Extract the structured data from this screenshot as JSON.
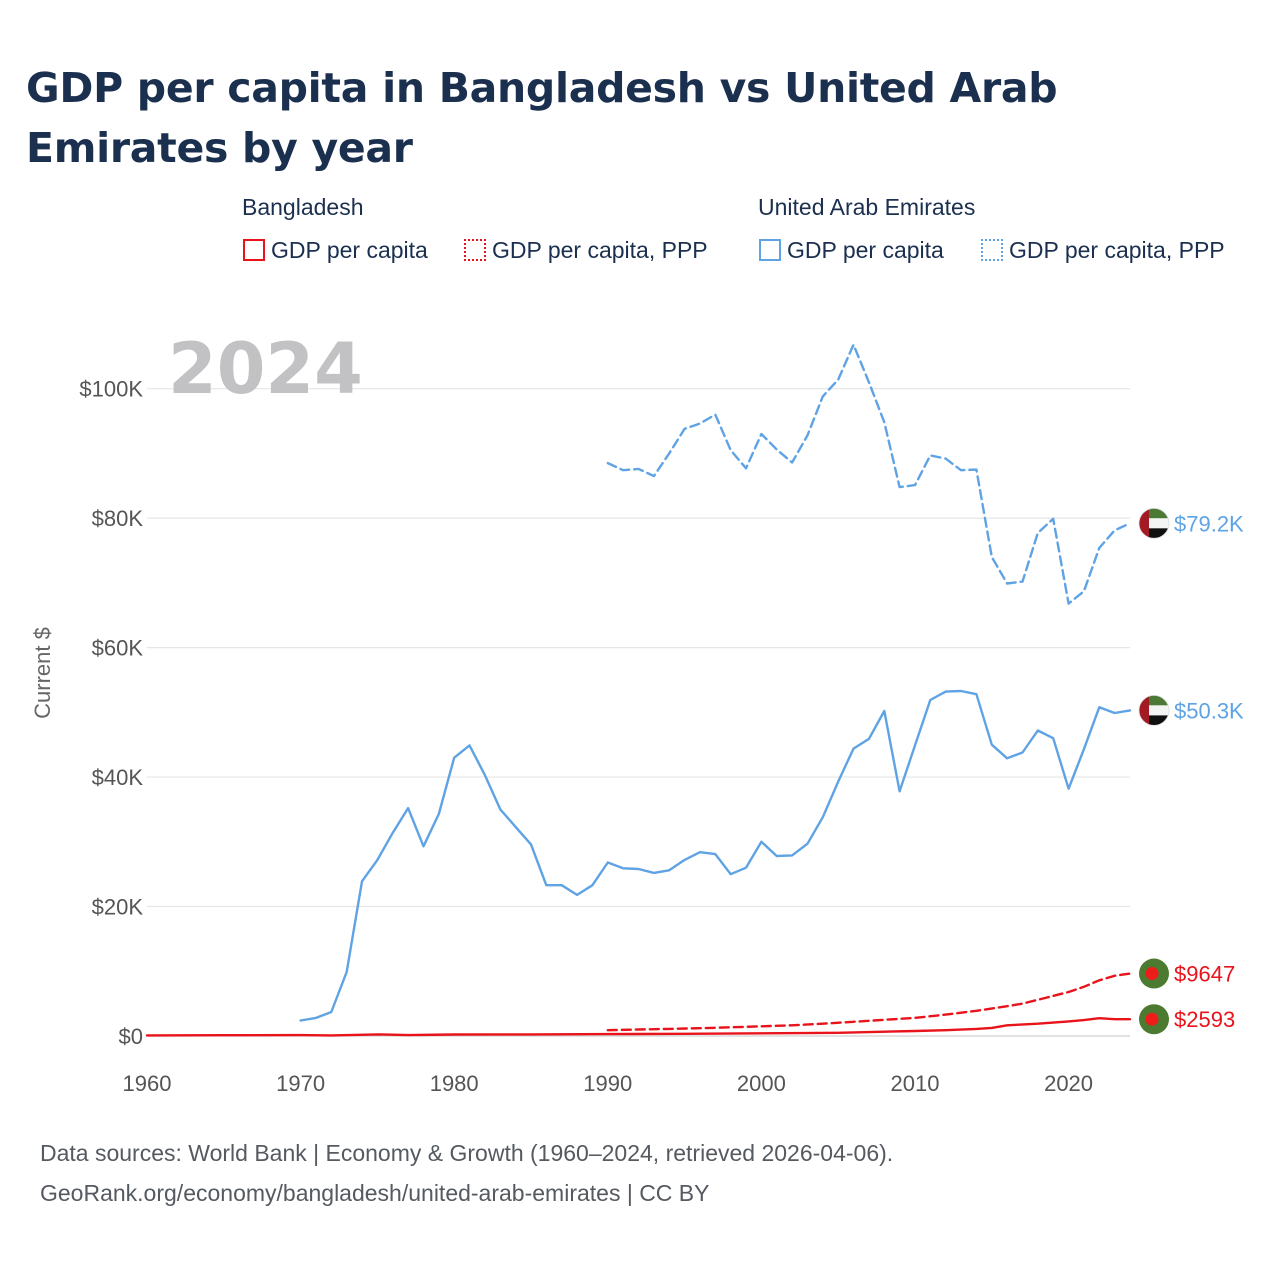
{
  "title": "GDP per capita in Bangladesh vs United Arab Emirates by year",
  "legend": {
    "groups": [
      {
        "name": "Bangladesh",
        "color": "#e8131b",
        "items": [
          {
            "label": "GDP per capita",
            "style": "solid"
          },
          {
            "label": "GDP per capita, PPP",
            "style": "dotted"
          }
        ]
      },
      {
        "name": "United Arab Emirates",
        "color": "#5fa3e4",
        "items": [
          {
            "label": "GDP per capita",
            "style": "solid"
          },
          {
            "label": "GDP per capita, PPP",
            "style": "dotted"
          }
        ]
      }
    ]
  },
  "source_line1": "Data sources: World Bank | Economy & Growth (1960–2024, retrieved 2026-04-06).",
  "source_line2": "GeoRank.org/economy/bangladesh/united-arab-emirates | CC BY",
  "chart_data": {
    "type": "line",
    "title": "GDP per capita in Bangladesh vs United Arab Emirates by year",
    "year_label": "2024",
    "ylabel": "Current $",
    "xlabel": "",
    "xlim": [
      1960,
      2024
    ],
    "ylim": [
      0,
      112000
    ],
    "x_ticks": [
      1960,
      1970,
      1980,
      1990,
      2000,
      2010,
      2020
    ],
    "y_ticks": [
      0,
      20000,
      40000,
      60000,
      80000,
      100000
    ],
    "y_tick_labels": [
      "$0",
      "$20K",
      "$40K",
      "$60K",
      "$80K",
      "$100K"
    ],
    "grid": true,
    "series": [
      {
        "name": "United Arab Emirates GDP per capita, PPP",
        "country": "United Arab Emirates",
        "color": "#5fa3e4",
        "dash": "dashed",
        "end_label": "$79.2K",
        "x": [
          1990,
          1991,
          1992,
          1993,
          1994,
          1995,
          1996,
          1997,
          1998,
          1999,
          2000,
          2001,
          2002,
          2003,
          2004,
          2005,
          2006,
          2007,
          2008,
          2009,
          2010,
          2011,
          2012,
          2013,
          2014,
          2015,
          2016,
          2017,
          2018,
          2019,
          2020,
          2021,
          2022,
          2023,
          2024
        ],
        "values": [
          88500,
          87400,
          87600,
          86500,
          90000,
          93800,
          94600,
          96000,
          90500,
          87700,
          93000,
          90600,
          88600,
          92800,
          98800,
          101400,
          106800,
          101000,
          94800,
          84800,
          85100,
          89700,
          89200,
          87400,
          87500,
          74000,
          69900,
          70200,
          77700,
          79900,
          66800,
          68700,
          75400,
          78100,
          79200
        ]
      },
      {
        "name": "United Arab Emirates GDP per capita",
        "country": "United Arab Emirates",
        "color": "#5fa3e4",
        "dash": "solid",
        "end_label": "$50.3K",
        "x": [
          1970,
          1971,
          1972,
          1973,
          1974,
          1975,
          1976,
          1977,
          1978,
          1979,
          1980,
          1981,
          1982,
          1983,
          1984,
          1985,
          1986,
          1987,
          1988,
          1989,
          1990,
          1991,
          1992,
          1993,
          1994,
          1995,
          1996,
          1997,
          1998,
          1999,
          2000,
          2001,
          2002,
          2003,
          2004,
          2005,
          2006,
          2007,
          2008,
          2009,
          2010,
          2011,
          2012,
          2013,
          2014,
          2015,
          2016,
          2017,
          2018,
          2019,
          2020,
          2021,
          2022,
          2023,
          2024
        ],
        "values": [
          2400,
          2800,
          3700,
          9900,
          23900,
          27200,
          31400,
          35200,
          29300,
          34300,
          43000,
          44900,
          40300,
          35000,
          32300,
          29600,
          23300,
          23300,
          21800,
          23300,
          26800,
          25900,
          25800,
          25200,
          25600,
          27200,
          28400,
          28100,
          25000,
          26000,
          30000,
          27800,
          27900,
          29700,
          33800,
          39300,
          44400,
          45900,
          50200,
          37800,
          44900,
          51900,
          53200,
          53300,
          52800,
          45000,
          42900,
          43800,
          47200,
          46000,
          38200,
          44300,
          50800,
          49900,
          50300
        ]
      },
      {
        "name": "Bangladesh GDP per capita, PPP",
        "country": "Bangladesh",
        "color": "#e8131b",
        "dash": "dashed",
        "end_label": "$9647",
        "x": [
          1990,
          1992,
          1994,
          1996,
          1998,
          2000,
          2002,
          2004,
          2006,
          2008,
          2010,
          2012,
          2014,
          2016,
          2017,
          2018,
          2019,
          2020,
          2021,
          2022,
          2023,
          2024
        ],
        "values": [
          900,
          1000,
          1100,
          1200,
          1350,
          1500,
          1650,
          1900,
          2200,
          2500,
          2800,
          3300,
          3900,
          4600,
          5000,
          5600,
          6200,
          6800,
          7600,
          8600,
          9300,
          9647
        ]
      },
      {
        "name": "Bangladesh GDP per capita",
        "country": "Bangladesh",
        "color": "#e8131b",
        "dash": "solid",
        "end_label": "$2593",
        "x": [
          1960,
          1965,
          1970,
          1972,
          1975,
          1977,
          1980,
          1985,
          1990,
          1995,
          2000,
          2005,
          2010,
          2012,
          2014,
          2015,
          2016,
          2018,
          2020,
          2021,
          2022,
          2023,
          2024
        ],
        "values": [
          90,
          130,
          140,
          100,
          240,
          140,
          230,
          250,
          300,
          340,
          410,
          490,
          780,
          900,
          1100,
          1250,
          1650,
          1900,
          2250,
          2460,
          2750,
          2600,
          2593
        ]
      }
    ]
  }
}
